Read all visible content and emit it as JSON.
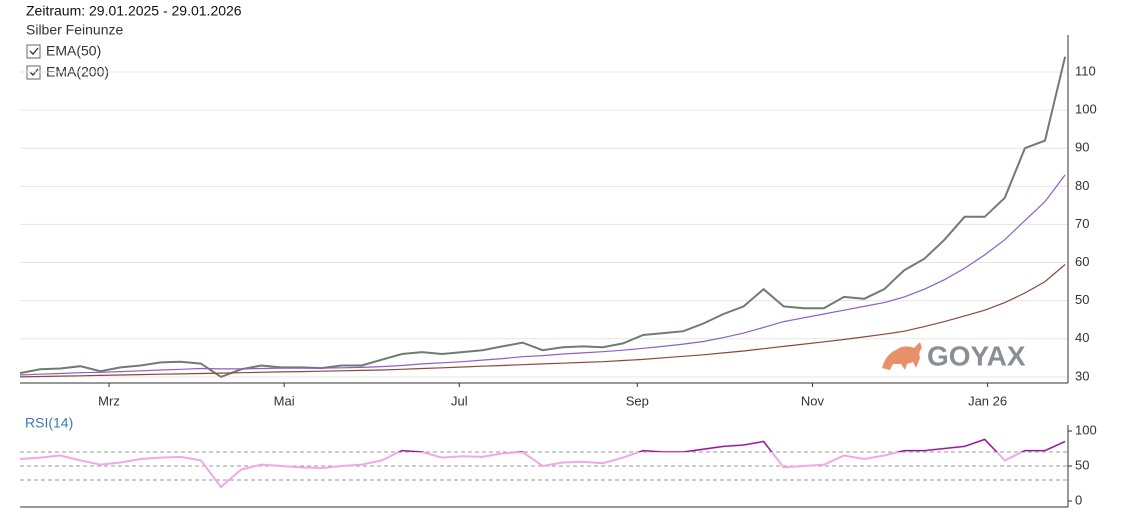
{
  "logo": "GOYAX",
  "chart_data": [
    {
      "type": "line",
      "title": "Zeitraum: 29.01.2025 - 29.01.2026",
      "x": [
        0,
        7,
        14,
        21,
        28,
        35,
        42,
        49,
        56,
        63,
        70,
        77,
        84,
        91,
        98,
        105,
        112,
        119,
        126,
        133,
        140,
        147,
        154,
        161,
        168,
        175,
        182,
        189,
        196,
        203,
        210,
        217,
        224,
        231,
        238,
        245,
        252,
        259,
        266,
        273,
        280,
        287,
        294,
        301,
        308,
        315,
        322,
        329,
        336,
        343,
        350,
        357,
        364
      ],
      "series": [
        {
          "name": "Silber Feinunze",
          "color": "#6e7d6e",
          "values": [
            31,
            32,
            32.2,
            32.8,
            31.5,
            32.5,
            33,
            33.8,
            34,
            33.5,
            30,
            32,
            33,
            32.5,
            32.5,
            32.3,
            33,
            33,
            34.5,
            36,
            36.5,
            36,
            36.5,
            37,
            38,
            39,
            37,
            37.8,
            38,
            37.8,
            38.8,
            41,
            41.5,
            42,
            44,
            46.5,
            48.5,
            53,
            48.5,
            48,
            48,
            51,
            50.5,
            53,
            58,
            61,
            66,
            72,
            72,
            77,
            90,
            92,
            114
          ]
        },
        {
          "name": "EMA(50)",
          "color": "#8e5fc4",
          "values": [
            30.5,
            30.7,
            30.9,
            31.1,
            31.2,
            31.4,
            31.6,
            31.8,
            32,
            32.2,
            32.1,
            32.1,
            32.2,
            32.3,
            32.3,
            32.3,
            32.4,
            32.5,
            32.7,
            33,
            33.4,
            33.7,
            34,
            34.4,
            34.8,
            35.3,
            35.6,
            36,
            36.3,
            36.6,
            37,
            37.5,
            38,
            38.6,
            39.3,
            40.3,
            41.5,
            43,
            44.5,
            45.5,
            46.5,
            47.5,
            48.5,
            49.5,
            51,
            53,
            55.5,
            58.5,
            62,
            66,
            71,
            76,
            83
          ]
        },
        {
          "name": "EMA(200)",
          "color": "#8b4a3a",
          "values": [
            30,
            30.1,
            30.2,
            30.3,
            30.4,
            30.5,
            30.6,
            30.7,
            30.8,
            30.9,
            31,
            31.1,
            31.2,
            31.3,
            31.4,
            31.5,
            31.6,
            31.7,
            31.8,
            32,
            32.2,
            32.4,
            32.6,
            32.8,
            33,
            33.2,
            33.4,
            33.6,
            33.8,
            34,
            34.3,
            34.6,
            35,
            35.4,
            35.8,
            36.3,
            36.8,
            37.4,
            38,
            38.6,
            39.2,
            39.8,
            40.5,
            41.2,
            42,
            43.2,
            44.5,
            46,
            47.5,
            49.5,
            52,
            55,
            59.5
          ]
        }
      ],
      "xlim": [
        0,
        365
      ],
      "xticks": [
        {
          "value": 31,
          "label": "Mrz"
        },
        {
          "value": 92,
          "label": "Mai"
        },
        {
          "value": 153,
          "label": "Jul"
        },
        {
          "value": 215,
          "label": "Sep"
        },
        {
          "value": 276,
          "label": "Nov"
        },
        {
          "value": 337,
          "label": "Jan 26"
        }
      ],
      "ylim": [
        28.4,
        119.7
      ],
      "yticks": [
        30,
        40,
        50,
        60,
        70,
        80,
        90,
        100,
        110
      ],
      "grid": true
    },
    {
      "type": "line",
      "x": [
        0,
        7,
        14,
        21,
        28,
        35,
        42,
        49,
        56,
        63,
        70,
        77,
        84,
        91,
        98,
        105,
        112,
        119,
        126,
        133,
        140,
        147,
        154,
        161,
        168,
        175,
        182,
        189,
        196,
        203,
        210,
        217,
        224,
        231,
        238,
        245,
        252,
        259,
        266,
        273,
        280,
        287,
        294,
        301,
        308,
        315,
        322,
        329,
        336,
        343,
        350,
        357,
        364
      ],
      "series": [
        {
          "name": "RSI(14)",
          "color": "#f0a8e8",
          "high_color": "#8a1a9a",
          "values": [
            60,
            62,
            65,
            58,
            52,
            55,
            60,
            62,
            63,
            58,
            20,
            45,
            52,
            50,
            48,
            47,
            50,
            52,
            58,
            72,
            70,
            62,
            64,
            63,
            68,
            70,
            50,
            55,
            56,
            54,
            62,
            72,
            70,
            70,
            74,
            78,
            80,
            85,
            48,
            50,
            52,
            65,
            60,
            65,
            72,
            72,
            75,
            78,
            88,
            58,
            72,
            72,
            85
          ]
        }
      ],
      "xlim": [
        0,
        365
      ],
      "ylim": [
        -8.6,
        108.6
      ],
      "yticks": [
        0,
        50,
        100
      ],
      "hlines": [
        30,
        50,
        70
      ]
    }
  ]
}
